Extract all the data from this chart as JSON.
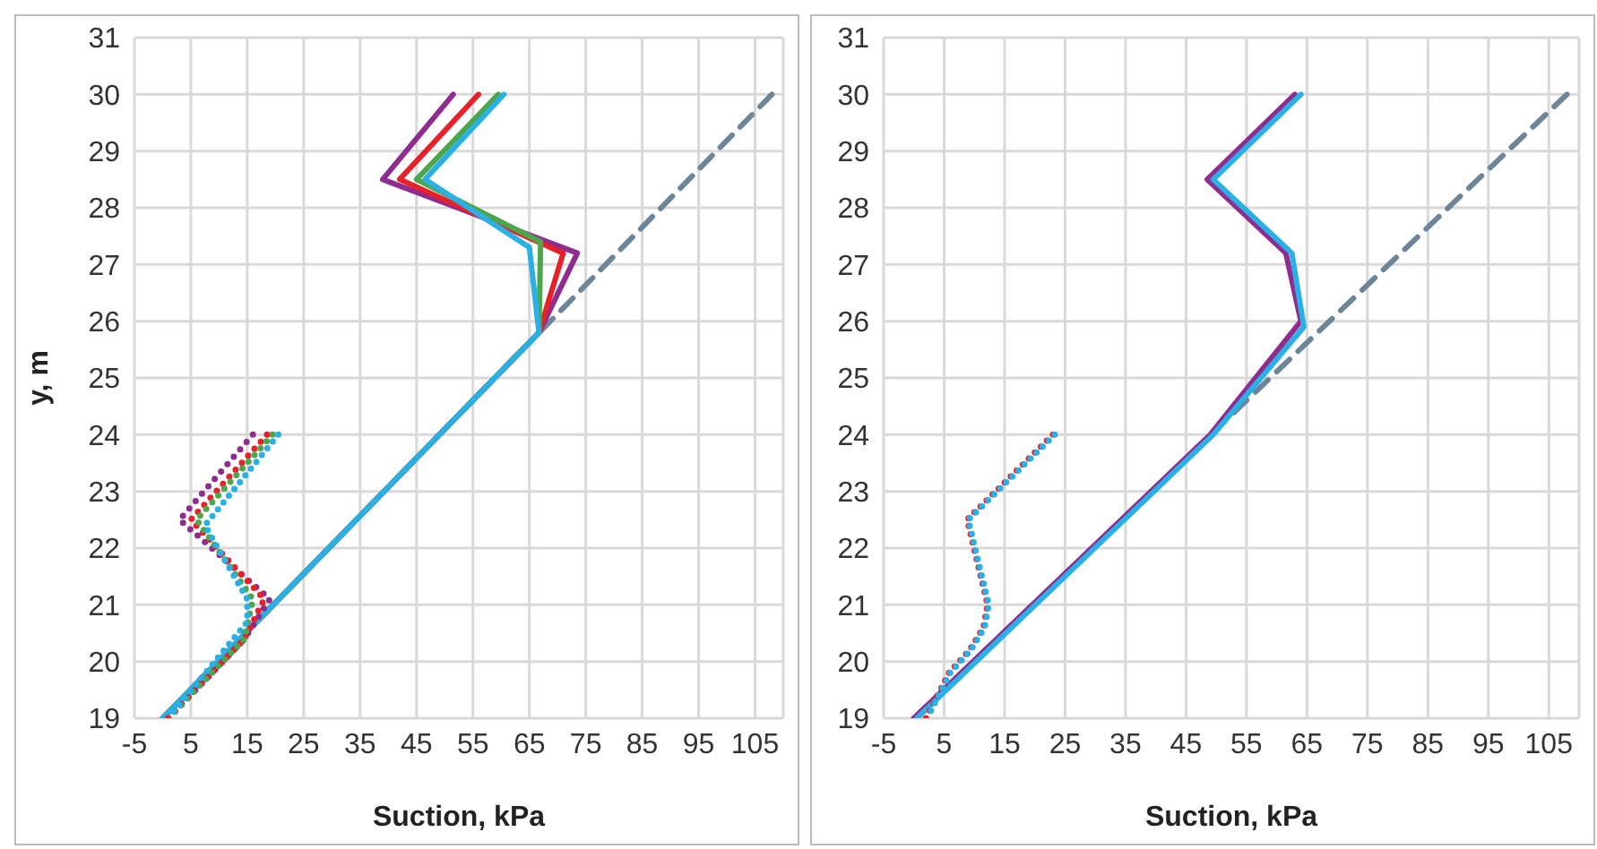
{
  "chart_data": [
    {
      "type": "line",
      "xlabel": "Suction, kPa",
      "ylabel": "y, m",
      "xlim": [
        -5,
        110
      ],
      "xticks": [
        -5,
        5,
        15,
        25,
        35,
        45,
        55,
        65,
        75,
        85,
        95,
        105
      ],
      "ylim": [
        19,
        31
      ],
      "yticks": [
        19,
        20,
        21,
        22,
        23,
        24,
        25,
        26,
        27,
        28,
        29,
        30,
        31
      ],
      "grid": true,
      "legend": false,
      "marker": "none",
      "series": [
        {
          "color": "#6c8599",
          "line_style": "dashed",
          "x": [
            0,
            108
          ],
          "values": [
            19,
            30
          ]
        },
        {
          "color": "#8e2c90",
          "line_style": "solid",
          "x": [
            51.5,
            39,
            73.5,
            66.7,
            0
          ],
          "values": [
            30,
            28.5,
            27.2,
            25.8,
            19
          ]
        },
        {
          "color": "#e8202a",
          "line_style": "solid",
          "x": [
            56,
            42,
            71,
            66.7,
            0
          ],
          "values": [
            30,
            28.5,
            27.2,
            25.8,
            19
          ]
        },
        {
          "color": "#4ca64c",
          "line_style": "solid",
          "x": [
            59.5,
            45,
            67,
            66.7,
            0
          ],
          "values": [
            30,
            28.5,
            27.4,
            25.8,
            19
          ]
        },
        {
          "color": "#2ab0e4",
          "line_style": "solid",
          "x": [
            60.5,
            46.5,
            65,
            66.7,
            0
          ],
          "values": [
            30,
            28.5,
            27.3,
            25.8,
            19
          ]
        },
        {
          "color": "#8e2c90",
          "line_style": "dotted",
          "x": [
            16,
            3,
            19,
            14.5,
            1
          ],
          "values": [
            24,
            22.5,
            21.1,
            20.4,
            19
          ]
        },
        {
          "color": "#e8202a",
          "line_style": "dotted",
          "x": [
            18.5,
            5,
            18,
            14.5,
            1
          ],
          "values": [
            24,
            22.5,
            21.1,
            20.4,
            19
          ]
        },
        {
          "color": "#4ca64c",
          "line_style": "dotted",
          "x": [
            19.5,
            6,
            16,
            14.5,
            1
          ],
          "values": [
            24,
            22.5,
            21.1,
            20.4,
            19
          ]
        },
        {
          "color": "#2ab0e4",
          "line_style": "dotted",
          "x": [
            20.5,
            7.5,
            15,
            15,
            1
          ],
          "values": [
            24,
            22.4,
            21.1,
            20.7,
            19
          ]
        }
      ]
    },
    {
      "type": "line",
      "xlabel": "Suction, kPa",
      "xlim": [
        -5,
        110
      ],
      "xticks": [
        -5,
        5,
        15,
        25,
        35,
        45,
        55,
        65,
        75,
        85,
        95,
        105
      ],
      "ylim": [
        19,
        31
      ],
      "yticks": [
        19,
        20,
        21,
        22,
        23,
        24,
        25,
        26,
        27,
        28,
        29,
        30,
        31
      ],
      "grid": true,
      "legend": false,
      "marker": "none",
      "series": [
        {
          "color": "#6c8599",
          "line_style": "dashed",
          "x": [
            0,
            108
          ],
          "values": [
            19,
            30
          ]
        },
        {
          "color": "#8e2c90",
          "line_style": "solid",
          "x": [
            63,
            48.5,
            61.5,
            64,
            49,
            0
          ],
          "values": [
            30,
            28.5,
            27.2,
            26,
            24,
            19
          ]
        },
        {
          "color": "#2ab0e4",
          "line_style": "solid",
          "x": [
            64,
            49.5,
            62.5,
            64.5,
            49.5,
            0.5
          ],
          "values": [
            30,
            28.5,
            27.2,
            25.9,
            24,
            19
          ]
        },
        {
          "color": "#e8202a",
          "line_style": "dotted",
          "x": [
            23,
            8.8,
            12.2,
            11.5,
            9.2,
            5.8,
            2
          ],
          "values": [
            24,
            22.5,
            21,
            20.6,
            20.2,
            19.8,
            19
          ]
        },
        {
          "color": "#2ab0e4",
          "line_style": "dotted",
          "x": [
            23.3,
            9,
            12.4,
            11.7,
            9.4,
            6,
            2.2
          ],
          "values": [
            24,
            22.5,
            21,
            20.6,
            20.2,
            19.8,
            19
          ]
        }
      ]
    }
  ]
}
